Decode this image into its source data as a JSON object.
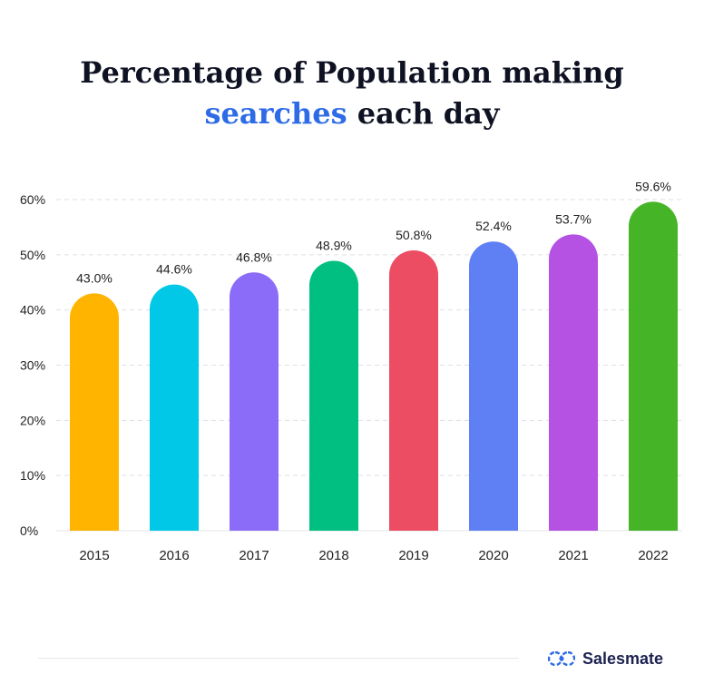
{
  "header": {
    "title_line1": "Percentage of Population making",
    "title_highlight": "searches",
    "title_rest": "each day"
  },
  "brand": {
    "name": "Salesmate",
    "icon": "salesmate-logo-icon",
    "color": "#2e6be6"
  },
  "chart_data": {
    "type": "bar",
    "title": "Percentage of Population making searches each day",
    "xlabel": "",
    "ylabel": "",
    "categories": [
      "2015",
      "2016",
      "2017",
      "2018",
      "2019",
      "2020",
      "2021",
      "2022"
    ],
    "values": [
      43.0,
      44.6,
      46.8,
      48.9,
      50.8,
      52.4,
      53.7,
      59.6
    ],
    "value_labels": [
      "43.0%",
      "44.6%",
      "46.8%",
      "48.9%",
      "50.8%",
      "52.4%",
      "53.7%",
      "59.6%"
    ],
    "colors": [
      "#ffb400",
      "#00c8e6",
      "#8a6cf8",
      "#00bf80",
      "#ec4d63",
      "#5f7ff5",
      "#b552e3",
      "#45b527"
    ],
    "ylim": [
      0,
      60
    ],
    "yticks": [
      0,
      10,
      20,
      30,
      40,
      50,
      60
    ],
    "ytick_labels": [
      "0%",
      "10%",
      "20%",
      "30%",
      "40%",
      "50%",
      "60%"
    ],
    "grid": true,
    "legend": "none"
  }
}
